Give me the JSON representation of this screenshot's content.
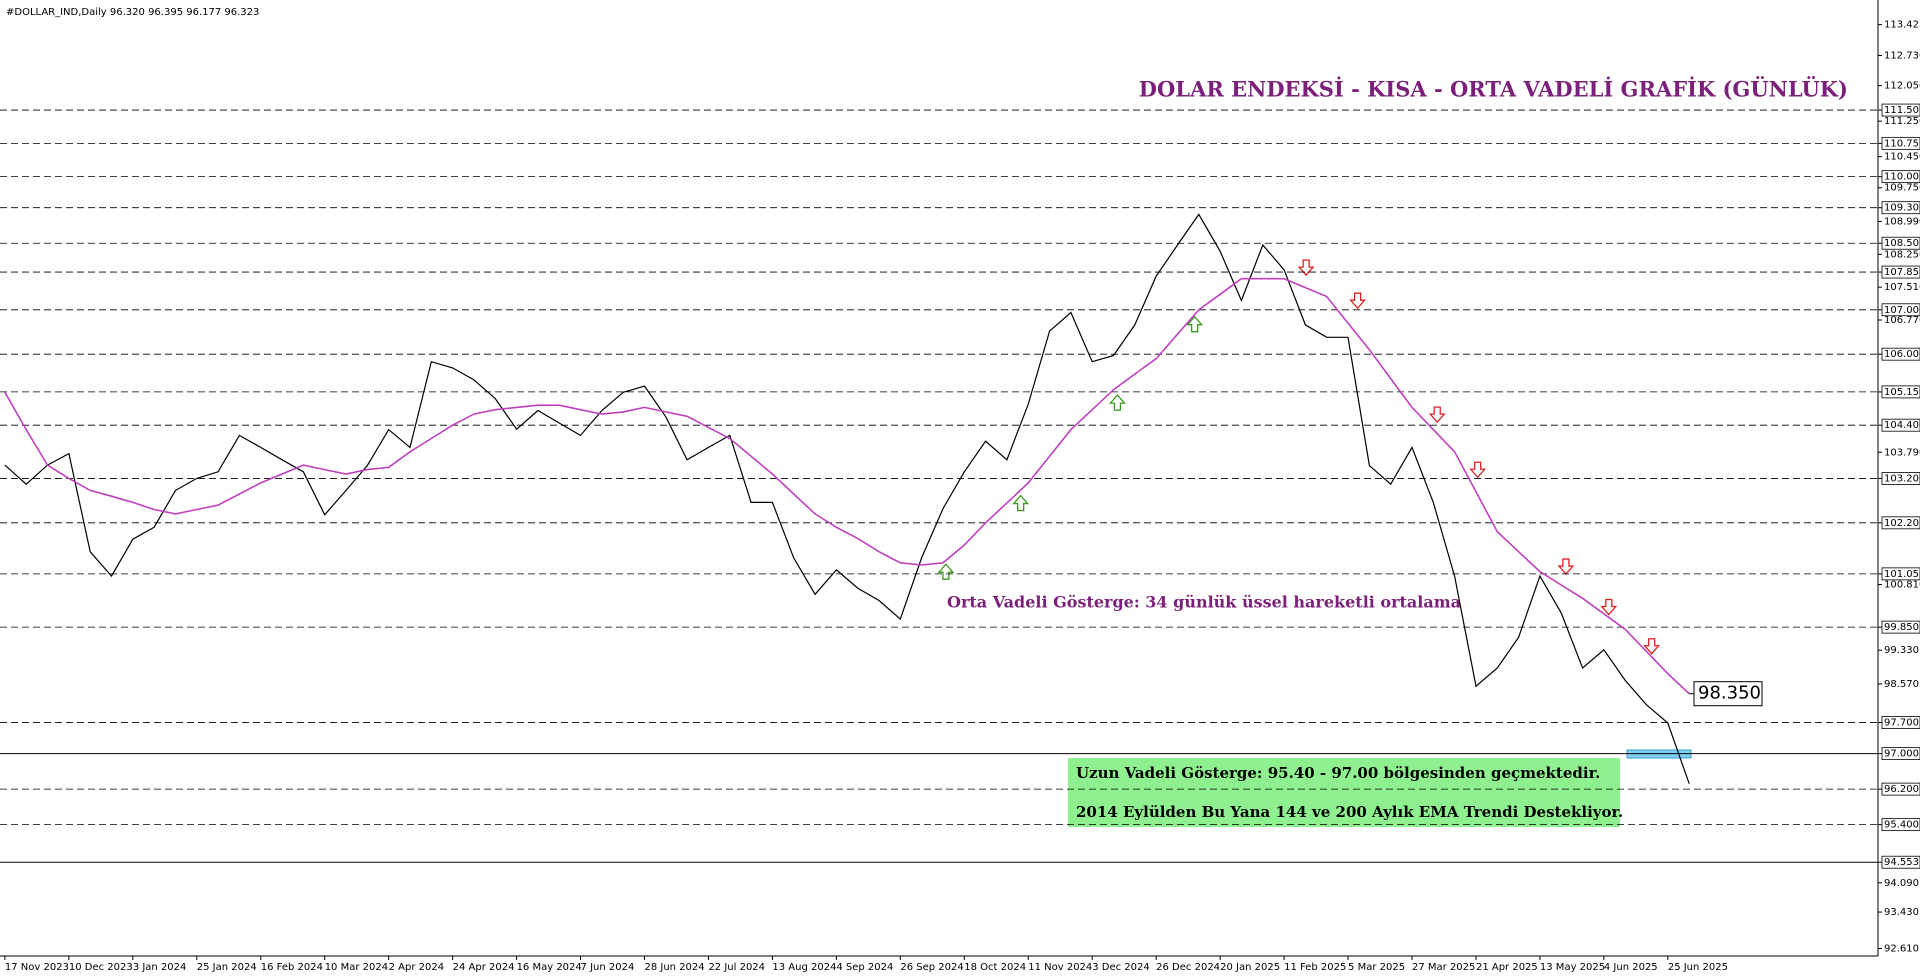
{
  "chart_data": {
    "type": "line",
    "header": "#DOLLAR_IND,Daily  96.320 96.395 96.177 96.323",
    "title": "DOLAR ENDEKSİ - KISA - ORTA VADELİ GRAFİK (GÜNLÜK)",
    "annotations": [
      "Orta Vadeli Gösterge: 34 günlük üssel hareketli ortalama",
      "98.350"
    ],
    "info_box": [
      "Uzun Vadeli Gösterge: 95.40 - 97.00 bölgesinden geçmektedir.",
      "2014 Eylülden Bu Yana 144 ve 200 Aylık EMA Trendi Destekliyor."
    ],
    "categories": [
      "17 Nov 2023",
      null,
      null,
      "10 Dec 2023",
      null,
      null,
      "3 Jan 2024",
      null,
      null,
      "25 Jan 2024",
      null,
      null,
      "16 Feb 2024",
      null,
      null,
      "10 Mar 2024",
      null,
      null,
      "2 Apr 2024",
      null,
      null,
      "24 Apr 2024",
      null,
      null,
      "16 May 2024",
      null,
      null,
      "7 Jun 2024",
      null,
      null,
      "28 Jun 2024",
      null,
      null,
      "22 Jul 2024",
      null,
      null,
      "13 Aug 2024",
      null,
      null,
      "4 Sep 2024",
      null,
      null,
      "26 Sep 2024",
      null,
      null,
      "18 Oct 2024",
      null,
      null,
      "11 Nov 2024",
      null,
      null,
      "3 Dec 2024",
      null,
      null,
      "26 Dec 2024",
      null,
      null,
      "20 Jan 2025",
      null,
      null,
      "11 Feb 2025",
      null,
      null,
      "5 Mar 2025",
      null,
      null,
      "27 Mar 2025",
      null,
      null,
      "21 Apr 2025",
      null,
      null,
      "13 May 2025",
      null,
      null,
      "4 Jun 2025",
      null,
      null,
      "25 Jun 2025",
      null
    ],
    "series": [
      {
        "name": "DOLLAR_IND",
        "color": "#000000",
        "values": [
          103.5,
          103.07,
          103.5,
          103.76,
          101.55,
          101.0,
          101.83,
          102.1,
          102.93,
          103.2,
          103.35,
          104.17,
          103.9,
          103.62,
          103.35,
          102.38,
          102.93,
          103.49,
          104.3,
          103.9,
          105.83,
          105.69,
          105.42,
          105.0,
          104.31,
          104.73,
          104.45,
          104.17,
          104.73,
          105.14,
          105.28,
          104.59,
          103.62,
          103.9,
          104.17,
          102.66,
          102.66,
          101.41,
          100.59,
          101.14,
          100.73,
          100.45,
          100.03,
          101.41,
          102.52,
          103.35,
          104.04,
          103.62,
          104.87,
          106.52,
          106.94,
          105.83,
          105.97,
          106.66,
          107.76,
          108.46,
          109.15,
          108.32,
          107.21,
          108.46,
          107.9,
          106.66,
          106.38,
          106.38,
          103.49,
          103.07,
          103.9,
          102.66,
          101.0,
          98.52,
          98.93,
          99.62,
          101.0,
          100.17,
          98.93,
          99.34,
          98.65,
          98.1,
          97.69,
          96.323
        ]
      },
      {
        "name": "EMA 34",
        "color": "#c040c0",
        "values": [
          105.14,
          104.3,
          103.5,
          103.2,
          102.93,
          102.8,
          102.66,
          102.5,
          102.4,
          102.5,
          102.6,
          102.85,
          103.1,
          103.3,
          103.5,
          103.4,
          103.3,
          103.4,
          103.45,
          103.8,
          104.1,
          104.4,
          104.65,
          104.75,
          104.8,
          104.85,
          104.85,
          104.75,
          104.65,
          104.7,
          104.8,
          104.7,
          104.6,
          104.35,
          104.1,
          103.7,
          103.3,
          102.85,
          102.4,
          102.1,
          101.85,
          101.55,
          101.3,
          101.25,
          101.3,
          101.7,
          102.2,
          102.65,
          103.1,
          103.7,
          104.3,
          104.75,
          105.2,
          105.55,
          105.9,
          106.45,
          107.0,
          107.35,
          107.7,
          107.7,
          107.7,
          107.5,
          107.3,
          106.7,
          106.1,
          105.45,
          104.8,
          104.3,
          103.8,
          102.9,
          102.0,
          101.55,
          101.1,
          100.8,
          100.5,
          100.15,
          99.8,
          99.3,
          98.8,
          98.35
        ]
      }
    ],
    "levels_dashed": [
      111.5,
      110.75,
      110.0,
      109.3,
      108.5,
      107.85,
      107.0,
      106.0,
      105.15,
      104.4,
      103.2,
      102.2,
      101.05,
      99.85,
      97.7,
      96.2,
      95.4
    ],
    "levels_solid": [
      97.0,
      94.553
    ],
    "ylim": [
      92.44,
      113.98
    ],
    "yticks": [
      113.425,
      {
        "value": 112.73,
        "label": "112.730"
      },
      {
        "value": 112.05,
        "label": "112.050"
      },
      {
        "value": 111.5,
        "label": "111.500"
      },
      {
        "value": 111.25,
        "label": "111.250"
      },
      {
        "value": 110.75,
        "label": "110.750"
      },
      {
        "value": 110.45,
        "label": "110.450"
      },
      {
        "value": 110.0,
        "label": "110.000"
      },
      {
        "value": 109.75,
        "label": "109.750"
      },
      {
        "value": 109.3,
        "label": "109.300"
      },
      {
        "value": 108.99,
        "label": "108.990"
      },
      {
        "value": 108.5,
        "label": "108.500"
      },
      {
        "value": 108.25,
        "label": "108.250"
      },
      {
        "value": 107.85,
        "label": "107.850"
      },
      {
        "value": 107.51,
        "label": "107.510"
      },
      {
        "value": 107.0,
        "label": "107.000"
      },
      {
        "value": 106.77,
        "label": "106.770"
      },
      {
        "value": 106.0,
        "label": "106.000"
      },
      {
        "value": 105.15,
        "label": "105.150"
      },
      {
        "value": 104.4,
        "label": "104.400"
      },
      {
        "value": 103.79,
        "label": "103.790"
      },
      {
        "value": 103.2,
        "label": "103.200"
      },
      {
        "value": 102.2,
        "label": "102.200"
      },
      {
        "value": 101.05,
        "label": "101.050"
      },
      {
        "value": 100.81,
        "label": "100.810"
      },
      {
        "value": 99.85,
        "label": "99.850"
      },
      {
        "value": 99.33,
        "label": "99.330"
      },
      {
        "value": 98.57,
        "label": "98.570"
      },
      {
        "value": 97.7,
        "label": "97.700"
      },
      {
        "value": 97.0,
        "label": "97.000"
      },
      {
        "value": 96.2,
        "label": "96.200"
      },
      {
        "value": 95.4,
        "label": "95.400"
      },
      94.553,
      {
        "value": 94.09,
        "label": "94.090"
      },
      {
        "value": 93.43,
        "label": "93.430"
      },
      {
        "value": 92.61,
        "label": "92.610"
      }
    ]
  }
}
